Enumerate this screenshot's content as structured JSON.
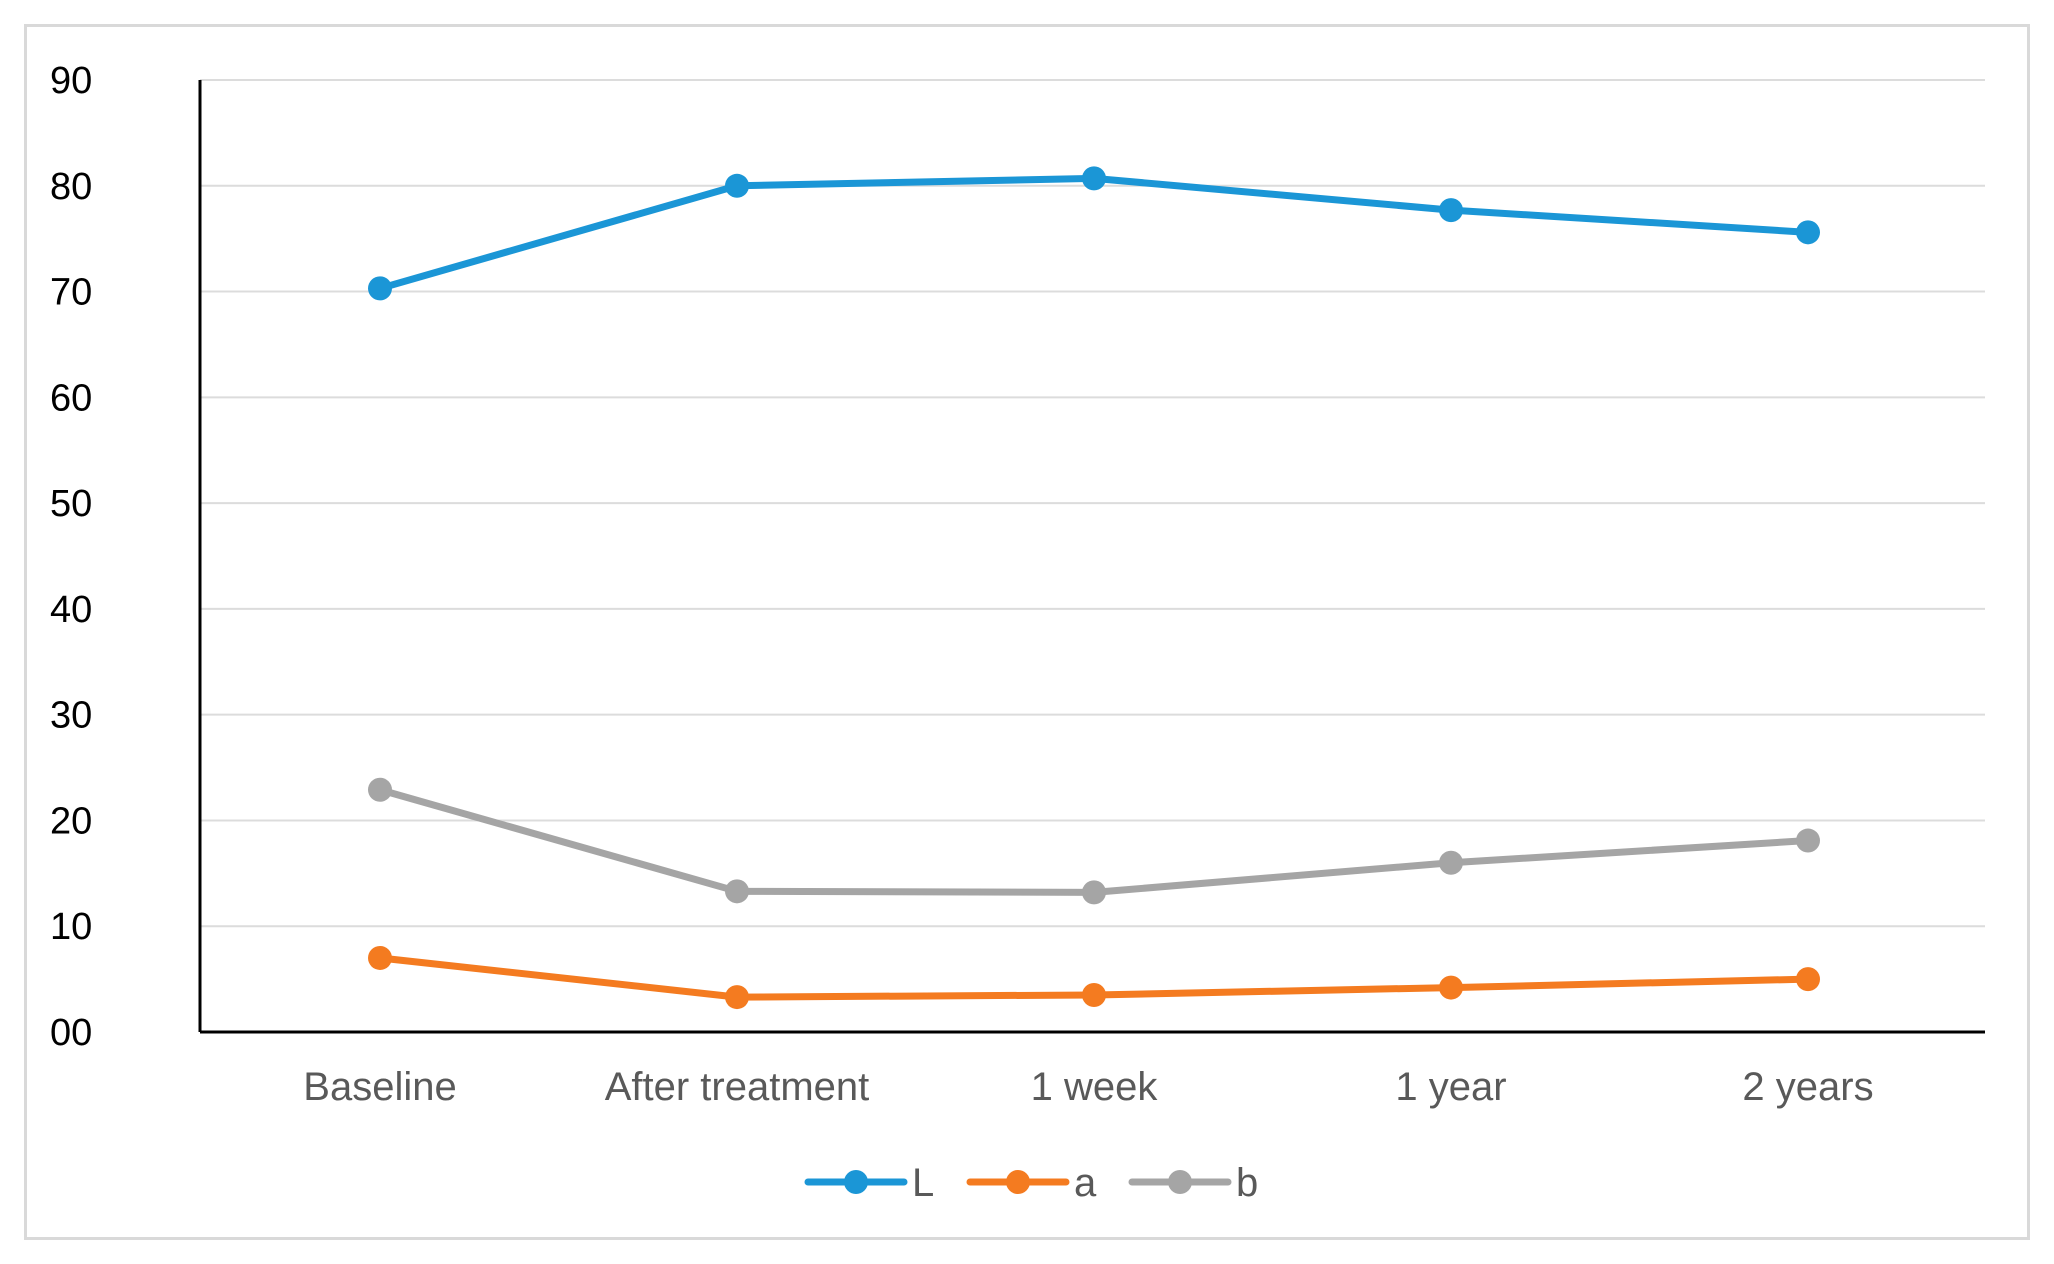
{
  "chart_data": {
    "type": "line",
    "categories": [
      "Baseline",
      "After treatment",
      "1 week",
      "1 year",
      "2 years"
    ],
    "yticks": [
      "00",
      "10",
      "20",
      "30",
      "40",
      "50",
      "60",
      "70",
      "80",
      "90"
    ],
    "ylim": [
      0,
      90
    ],
    "grid": true,
    "legend_position": "bottom",
    "series": [
      {
        "name": "L",
        "color": "#1b96d6",
        "values": [
          70.3,
          80.0,
          80.7,
          77.7,
          75.6
        ]
      },
      {
        "name": "a",
        "color": "#f47b20",
        "values": [
          7.0,
          3.3,
          3.5,
          4.2,
          5.0
        ]
      },
      {
        "name": "b",
        "color": "#a5a5a5",
        "values": [
          22.9,
          13.3,
          13.2,
          16.0,
          18.1
        ]
      }
    ]
  }
}
